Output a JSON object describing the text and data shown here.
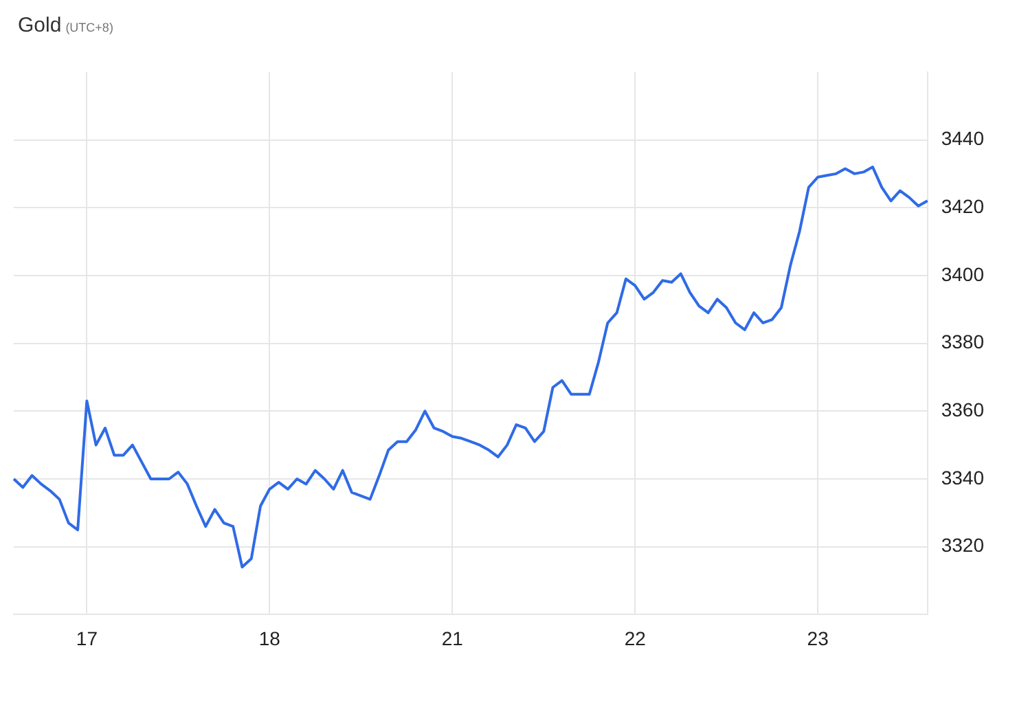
{
  "chart_data": {
    "type": "line",
    "title": "Gold",
    "subtitle": "(UTC+8)",
    "categories": [
      null,
      null,
      null,
      null,
      null,
      null,
      null,
      null,
      "17",
      null,
      null,
      null,
      null,
      null,
      null,
      null,
      null,
      null,
      null,
      null,
      null,
      null,
      null,
      null,
      null,
      null,
      null,
      null,
      "18",
      null,
      null,
      null,
      null,
      null,
      null,
      null,
      null,
      null,
      null,
      null,
      null,
      null,
      null,
      null,
      null,
      null,
      null,
      null,
      "21",
      null,
      null,
      null,
      null,
      null,
      null,
      null,
      null,
      null,
      null,
      null,
      null,
      null,
      null,
      null,
      null,
      null,
      null,
      null,
      "22",
      null,
      null,
      null,
      null,
      null,
      null,
      null,
      null,
      null,
      null,
      null,
      null,
      null,
      null,
      null,
      null,
      null,
      null,
      null,
      "23",
      null,
      null,
      null,
      null,
      null,
      null,
      null,
      null,
      null,
      null,
      null,
      null
    ],
    "series": [
      {
        "color": "#2f6be6",
        "values": [
          3340,
          3337.5,
          3341,
          3338.5,
          3336.5,
          3334,
          3327,
          3325,
          3363,
          3350,
          3355,
          3347,
          3347,
          3350,
          3345,
          3340,
          3340,
          3340,
          3342,
          3338.5,
          3332,
          3326,
          3331,
          3327,
          3326,
          3314,
          3316.5,
          3332,
          3337,
          3339,
          3337,
          3340,
          3338.5,
          3342.5,
          3340,
          3337,
          3342.5,
          3336,
          3335,
          3334,
          3341,
          3348.5,
          3351,
          3351,
          3354.5,
          3360,
          3355,
          3354,
          3352.5,
          3352,
          3351,
          3350,
          3348.5,
          3346.5,
          3350,
          3356,
          3355,
          3351,
          3354,
          3367,
          3369,
          3365,
          3365,
          3365,
          3374.5,
          3386,
          3389,
          3399,
          3397,
          3393,
          3395,
          3398.5,
          3398,
          3400.5,
          3395,
          3391,
          3389,
          3393,
          3390.5,
          3386,
          3384,
          3389,
          3386,
          3387,
          3390.5,
          3403,
          3413,
          3426,
          3429,
          3429.5,
          3430,
          3431.5,
          3430,
          3430.5,
          3432,
          3426,
          3422,
          3425,
          3423,
          3420.5,
          3422
        ]
      }
    ],
    "ylim": [
      3300,
      3460
    ],
    "yticks": [
      3320,
      3340,
      3360,
      3380,
      3400,
      3420,
      3440
    ],
    "grid": true,
    "legend": false
  }
}
